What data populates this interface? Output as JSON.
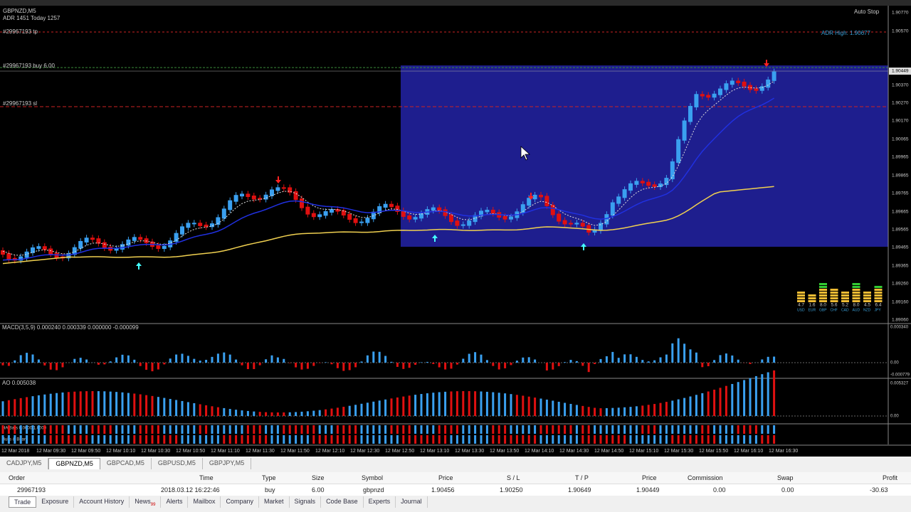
{
  "chart": {
    "symbol": "GBPNZD,M5",
    "adr": "ADR 1451 Today 1257",
    "tp_line": "#29967193 tp",
    "buy_line": "#29967193 buy 6.00",
    "sl_line": "#29967193 sl",
    "auto_stop": "Auto Stop",
    "adr_high": "ADR High: 1.90677",
    "price_axis": [
      "1.90770",
      "1.90570",
      "1.90449",
      "1.90370",
      "1.90270",
      "1.90170",
      "1.90065",
      "1.89965",
      "1.89865",
      "1.89765",
      "1.89665",
      "1.89565",
      "1.89465",
      "1.89365",
      "1.89260",
      "1.89160",
      "1.89060"
    ],
    "time_axis": [
      "12 Mar 2018",
      "12 Mar 09:30",
      "12 Mar 09:50",
      "12 Mar 10:10",
      "12 Mar 10:30",
      "12 Mar 10:50",
      "12 Mar 11:10",
      "12 Mar 11:30",
      "12 Mar 11:50",
      "12 Mar 12:10",
      "12 Mar 12:30",
      "12 Mar 12:50",
      "12 Mar 13:10",
      "12 Mar 13:30",
      "12 Mar 13:50",
      "12 Mar 14:10",
      "12 Mar 14:30",
      "12 Mar 14:50",
      "12 Mar 15:10",
      "12 Mar 15:30",
      "12 Mar 15:50",
      "12 Mar 16:10",
      "12 Mar 16:30"
    ],
    "strength_values": [
      "4.7",
      "1.6",
      "8.0",
      "5.6",
      "5.2",
      "8.0",
      "4.5",
      "6.4"
    ],
    "strength_currencies": [
      "USD",
      "EUR",
      "GBP",
      "CHF",
      "CAD",
      "AUD",
      "NZD",
      "JPY"
    ],
    "macd_label": "MACD(3,5,9) 0.000240 0.000339 0.000000 -0.000099",
    "macd_axis": [
      "0.000340",
      "0.00",
      "-0.000779"
    ],
    "ao_label": "AO 0.005038",
    "ao_axis": [
      "0.005327",
      "0.00"
    ],
    "ha_label": "HA Bars 0.0000 1.0000",
    "bb_label": "Bulls & Bears"
  },
  "chart_tabs": [
    "CADJPY,M5",
    "GBPNZD,M5",
    "GBPCAD,M5",
    "GBPUSD,M5",
    "GBPJPY,M5"
  ],
  "table": {
    "headers": [
      "Order",
      "Time",
      "Type",
      "Size",
      "Symbol",
      "Price",
      "S / L",
      "T / P",
      "Price",
      "Commission",
      "Swap",
      "Profit"
    ],
    "rows": [
      [
        "29967193",
        "2018.03.12 16:22:46",
        "buy",
        "6.00",
        "gbpnzd",
        "1.90456",
        "1.90250",
        "1.90649",
        "1.90449",
        "0.00",
        "0.00",
        "-30.63"
      ]
    ]
  },
  "bottom_tabs": [
    "Trade",
    "Exposure",
    "Account History",
    "News",
    "Alerts",
    "Mailbox",
    "Company",
    "Market",
    "Signals",
    "Code Base",
    "Experts",
    "Journal"
  ],
  "news_count": "99"
}
